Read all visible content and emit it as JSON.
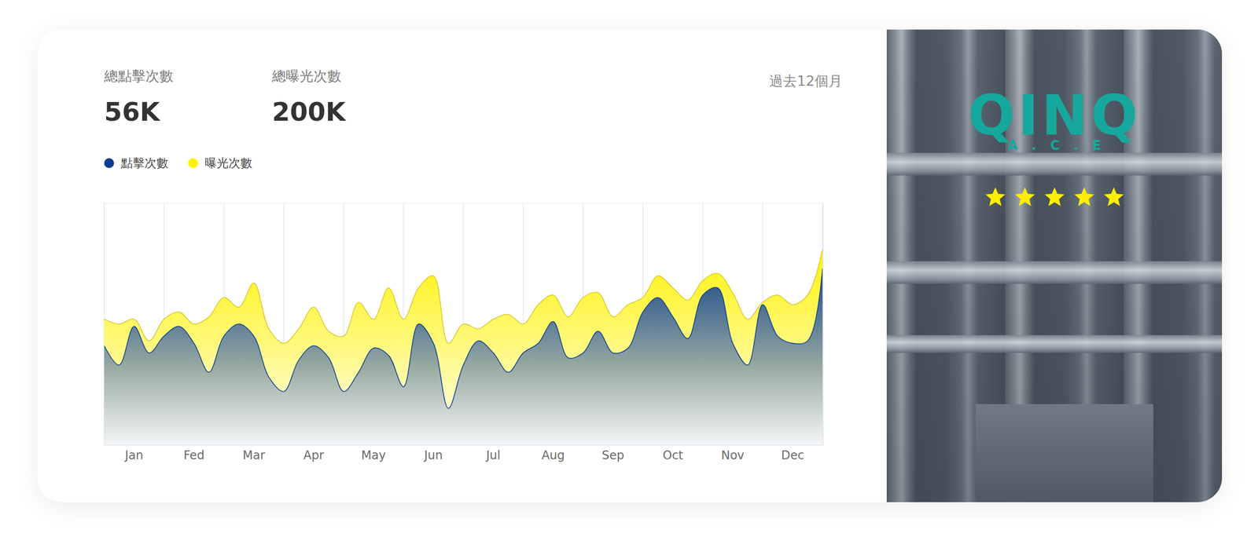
{
  "header": {
    "stats": [
      {
        "label": "總點擊次數",
        "value": "56K"
      },
      {
        "label": "總曝光次數",
        "value": "200K"
      }
    ],
    "period": "過去12個月"
  },
  "chart_data": {
    "type": "area",
    "categories": [
      null,
      null,
      "Jan",
      null,
      null,
      null,
      "Fed",
      null,
      null,
      null,
      "Mar",
      null,
      null,
      null,
      "Apr",
      null,
      null,
      null,
      "May",
      null,
      null,
      null,
      "Jun",
      null,
      null,
      null,
      "Jul",
      null,
      null,
      null,
      "Aug",
      null,
      null,
      null,
      "Sep",
      null,
      null,
      null,
      "Oct",
      null,
      null,
      null,
      "Nov",
      null,
      null,
      null,
      "Dec",
      null,
      null
    ],
    "series": [
      {
        "name": "點擊次數",
        "color": "#0a3d91",
        "values": [
          41,
          33,
          49,
          38,
          45,
          49,
          42,
          30,
          45,
          50,
          45,
          28,
          22,
          35,
          41,
          36,
          22,
          30,
          40,
          37,
          24,
          50,
          42,
          15,
          33,
          43,
          38,
          30,
          38,
          42,
          51,
          36,
          38,
          47,
          38,
          40,
          55,
          61,
          53,
          44,
          62,
          65,
          42,
          33,
          58,
          45,
          42,
          43,
          73
        ]
      },
      {
        "name": "曝光次數",
        "color": "#fff200",
        "values": [
          52,
          50,
          52,
          43,
          52,
          55,
          50,
          53,
          61,
          57,
          67,
          48,
          42,
          48,
          57,
          47,
          45,
          59,
          52,
          65,
          52,
          65,
          70,
          42,
          50,
          48,
          52,
          54,
          50,
          58,
          62,
          53,
          61,
          63,
          53,
          58,
          61,
          70,
          65,
          60,
          68,
          71,
          63,
          52,
          59,
          62,
          58,
          62,
          81
        ]
      }
    ],
    "ylim": [
      0,
      100
    ],
    "yticks": [],
    "grid": true,
    "tick_labels": "x",
    "legend": "top-left"
  },
  "brand": {
    "logo": "QINQ",
    "tagline": "A.C.E",
    "rating": 5
  }
}
